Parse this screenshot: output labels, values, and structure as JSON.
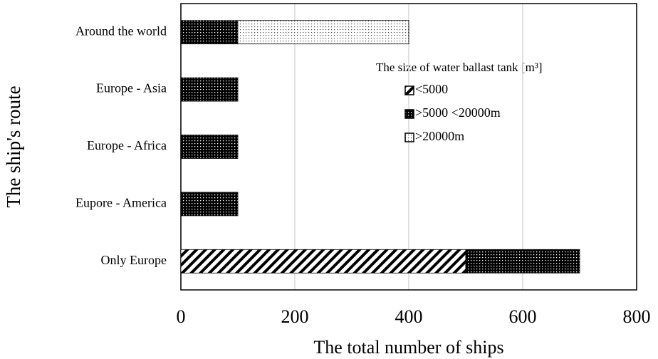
{
  "chart_data": {
    "type": "stacked_barh",
    "xlabel": "The total number of ships",
    "ylabel": "The ship's route",
    "categories": [
      "Around the world",
      "Europe - Asia",
      "Europe - Africa",
      "Eupore - America",
      "Only Europe"
    ],
    "series": [
      {
        "name": "<5000",
        "color": "#000000",
        "values": [
          0,
          0,
          0,
          0,
          500
        ]
      },
      {
        "name": ">5000 <20000m",
        "color": "#000000",
        "values": [
          100,
          100,
          100,
          100,
          200
        ]
      },
      {
        "name": ">20000m",
        "color": "#000000",
        "values": [
          300,
          0,
          0,
          0,
          0
        ]
      }
    ],
    "legend_title": "The size of water ballast tank [m³]",
    "xlim": [
      0,
      800
    ],
    "xticks": [
      0,
      200,
      400,
      600,
      800
    ],
    "grid": true,
    "legend": "right"
  }
}
